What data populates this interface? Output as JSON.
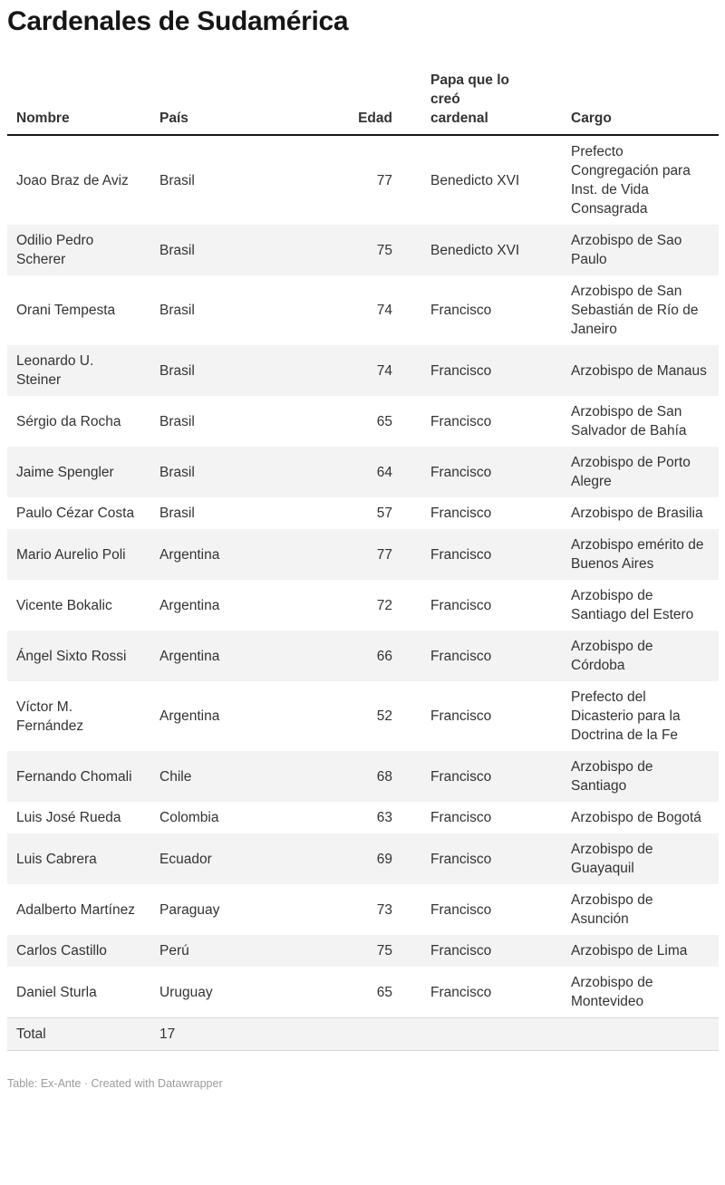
{
  "title": "Cardenales de Sudamérica",
  "chart_data": {
    "type": "table",
    "title": "Cardenales de Sudamérica",
    "columns": [
      "Nombre",
      "País",
      "Edad",
      "Papa que lo creó cardenal",
      "Cargo"
    ],
    "column_keys": [
      "nombre",
      "pais",
      "edad",
      "papa",
      "cargo"
    ],
    "rows": [
      [
        "Joao Braz de Aviz",
        "Brasil",
        77,
        "Benedicto XVI",
        "Prefecto Congregación para Inst. de Vida Consagrada"
      ],
      [
        "Odilio Pedro Scherer",
        "Brasil",
        75,
        "Benedicto XVI",
        "Arzobispo de Sao Paulo"
      ],
      [
        "Orani Tempesta",
        "Brasil",
        74,
        "Francisco",
        "Arzobispo de San Sebastián de Río de Janeiro"
      ],
      [
        "Leonardo U. Steiner",
        "Brasil",
        74,
        "Francisco",
        "Arzobispo de Manaus"
      ],
      [
        "Sérgio da Rocha",
        "Brasil",
        65,
        "Francisco",
        "Arzobispo de San Salvador de Bahía"
      ],
      [
        "Jaime Spengler",
        "Brasil",
        64,
        "Francisco",
        "Arzobispo de Porto Alegre"
      ],
      [
        "Paulo Cézar Costa",
        "Brasil",
        57,
        "Francisco",
        "Arzobispo de Brasilia"
      ],
      [
        "Mario Aurelio Poli",
        "Argentina",
        77,
        "Francisco",
        "Arzobispo emérito de Buenos Aires"
      ],
      [
        "Vicente Bokalic",
        "Argentina",
        72,
        "Francisco",
        "Arzobispo de Santiago del Estero"
      ],
      [
        "Ángel Sixto Rossi",
        "Argentina",
        66,
        "Francisco",
        "Arzobispo de Córdoba"
      ],
      [
        "Víctor M. Fernández",
        "Argentina",
        52,
        "Francisco",
        "Prefecto del Dicasterio para la Doctrina de la Fe"
      ],
      [
        "Fernando Chomali",
        "Chile",
        68,
        "Francisco",
        "Arzobispo de Santiago"
      ],
      [
        "Luis José Rueda",
        "Colombia",
        63,
        "Francisco",
        "Arzobispo de Bogotá"
      ],
      [
        "Luis Cabrera",
        "Ecuador",
        69,
        "Francisco",
        "Arzobispo de Guayaquil"
      ],
      [
        "Adalberto Martínez",
        "Paraguay",
        73,
        "Francisco",
        "Arzobispo de Asunción"
      ],
      [
        "Carlos Castillo",
        "Perú",
        75,
        "Francisco",
        "Arzobispo de Lima"
      ],
      [
        "Daniel Sturla",
        "Uruguay",
        65,
        "Francisco",
        "Arzobispo de Montevideo"
      ]
    ],
    "total_row": [
      "Total",
      "17",
      "",
      "",
      ""
    ]
  },
  "header_display": [
    "Nombre",
    "País",
    "Edad",
    "Papa que lo\ncreó\ncardenal",
    "Cargo"
  ],
  "footer": {
    "credit": "Table: Ex-Ante · Created with Datawrapper"
  },
  "colors": {
    "background": "#ffffff",
    "stripe": "#f3f3f3",
    "header_border": "#181818",
    "heading_text": "#181818",
    "body_text": "#333333",
    "total_border": "#d8d8d8",
    "footer_text": "#9b9b9b"
  }
}
